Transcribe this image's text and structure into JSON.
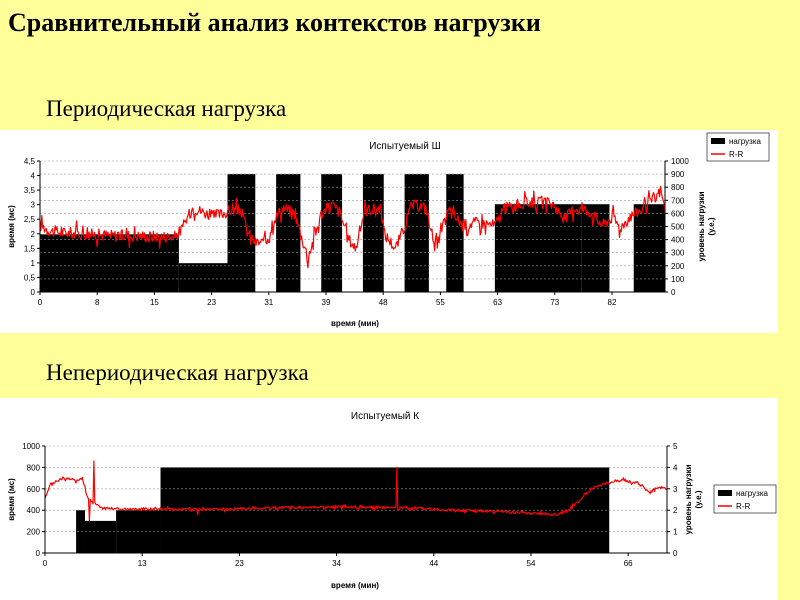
{
  "slide": {
    "title": "Сравнительный анализ контекстов нагрузки",
    "section_periodic": "Периодическая нагрузка",
    "section_nonperiodic": "Непериодическая нагрузка"
  },
  "colors": {
    "background": "#ffff99",
    "load": "#000000",
    "rr": "#ff0000",
    "grid": "#999999"
  },
  "chart_data": [
    {
      "type": "line",
      "title": "Испытуемый Ш",
      "xlabel": "время (мин)",
      "ylabel": "время (мс)",
      "y2label_line1": "уровень нагрузки",
      "y2label_line2": "(у.е.)",
      "x_ticks": [
        "0",
        "8",
        "15",
        "23",
        "31",
        "39",
        "48",
        "55",
        "63",
        "73",
        "82"
      ],
      "x_range": [
        0,
        90
      ],
      "ylim": [
        0,
        4.5
      ],
      "y_ticks": [
        "0",
        "0,5",
        "1",
        "1,5",
        "2",
        "2,5",
        "3",
        "3,5",
        "4",
        "4,5"
      ],
      "y2lim": [
        0,
        1000
      ],
      "y2_ticks": [
        "0",
        "100",
        "200",
        "300",
        "400",
        "500",
        "600",
        "700",
        "800",
        "900",
        "1000"
      ],
      "legend_position": "top-right",
      "legend": [
        "нагрузка",
        "R-R"
      ],
      "load_axis": "right",
      "load_steps": [
        [
          0,
          20,
          440
        ],
        [
          20,
          27,
          220
        ],
        [
          27,
          31,
          900
        ],
        [
          31,
          34,
          0
        ],
        [
          34,
          37.5,
          900
        ],
        [
          37.5,
          40.5,
          0
        ],
        [
          40.5,
          43.5,
          900
        ],
        [
          43.5,
          46.5,
          0
        ],
        [
          46.5,
          49.5,
          900
        ],
        [
          49.5,
          52.5,
          0
        ],
        [
          52.5,
          56,
          900
        ],
        [
          56,
          58.5,
          0
        ],
        [
          58.5,
          61,
          900
        ],
        [
          61,
          65.5,
          0
        ],
        [
          65.5,
          78,
          670
        ],
        [
          78,
          82,
          670
        ],
        [
          82,
          85.5,
          0
        ],
        [
          85.5,
          90,
          670
        ]
      ],
      "rr_axis": "left",
      "rr_keypoints": [
        [
          0,
          2.3
        ],
        [
          1.5,
          2.1
        ],
        [
          3,
          2.05
        ],
        [
          10,
          1.95
        ],
        [
          19.5,
          1.9
        ],
        [
          20.5,
          2.2
        ],
        [
          22,
          2.9
        ],
        [
          25,
          2.6
        ],
        [
          27.5,
          2.8
        ],
        [
          29,
          2.8
        ],
        [
          29.8,
          2.1
        ],
        [
          31,
          1.7
        ],
        [
          32.5,
          1.7
        ],
        [
          33.7,
          2.5
        ],
        [
          35,
          2.9
        ],
        [
          36.7,
          2.7
        ],
        [
          37.5,
          2.0
        ],
        [
          38.6,
          1.2
        ],
        [
          39.4,
          1.8
        ],
        [
          40.5,
          2.7
        ],
        [
          42,
          3.0
        ],
        [
          43.3,
          2.7
        ],
        [
          44.2,
          1.9
        ],
        [
          45.5,
          1.5
        ],
        [
          46.7,
          2.8
        ],
        [
          49,
          2.9
        ],
        [
          49.6,
          2.0
        ],
        [
          51.2,
          1.5
        ],
        [
          52.6,
          2.3
        ],
        [
          53.5,
          3.0
        ],
        [
          55.6,
          2.9
        ],
        [
          56.3,
          2.1
        ],
        [
          57.2,
          1.6
        ],
        [
          58.8,
          2.8
        ],
        [
          61,
          2.3
        ],
        [
          63,
          2.4
        ],
        [
          65.5,
          2.3
        ],
        [
          67,
          2.9
        ],
        [
          71,
          3.1
        ],
        [
          74,
          3.0
        ],
        [
          75.5,
          2.5
        ],
        [
          77,
          2.9
        ],
        [
          79,
          2.8
        ],
        [
          81,
          2.3
        ],
        [
          82.5,
          2.6
        ],
        [
          83.5,
          2.2
        ],
        [
          85,
          2.6
        ],
        [
          87,
          2.9
        ],
        [
          88.5,
          3.2
        ],
        [
          89.4,
          3.5
        ],
        [
          90,
          2.8
        ]
      ]
    },
    {
      "type": "line",
      "title": "Испытуемый К",
      "xlabel": "время (мин)",
      "ylabel": "время (мс)",
      "y2label_line1": "уровень нагрузки",
      "y2label_line2": "(у.е.)",
      "x_ticks": [
        "0",
        "13",
        "23",
        "34",
        "44",
        "54",
        "66"
      ],
      "x_range": [
        0,
        70
      ],
      "ylim": [
        0,
        1000
      ],
      "y_ticks": [
        "0",
        "200",
        "400",
        "600",
        "800",
        "1000"
      ],
      "y2lim": [
        0,
        5
      ],
      "y2_ticks": [
        "0",
        "1",
        "2",
        "3",
        "4",
        "5"
      ],
      "legend_position": "right",
      "legend": [
        "нагрузка",
        "R-R"
      ],
      "load_axis": "right",
      "load_steps": [
        [
          0,
          3.5,
          0
        ],
        [
          3.5,
          4.5,
          2
        ],
        [
          4.5,
          8,
          1.5
        ],
        [
          8,
          13,
          2
        ],
        [
          13,
          63.5,
          4
        ],
        [
          63.5,
          66.5,
          0
        ],
        [
          66.5,
          70,
          0
        ]
      ],
      "rr_axis": "left",
      "rr_keypoints": [
        [
          0,
          500
        ],
        [
          0.6,
          640
        ],
        [
          2,
          700
        ],
        [
          3.5,
          680
        ],
        [
          4.2,
          700
        ],
        [
          4.7,
          540
        ],
        [
          5.3,
          470
        ],
        [
          6.5,
          420
        ],
        [
          10,
          410
        ],
        [
          13,
          415
        ],
        [
          15,
          405
        ],
        [
          20,
          410
        ],
        [
          25,
          420
        ],
        [
          30,
          430
        ],
        [
          35,
          430
        ],
        [
          40,
          420
        ],
        [
          45,
          405
        ],
        [
          50,
          390
        ],
        [
          55,
          370
        ],
        [
          57.5,
          360
        ],
        [
          58.5,
          380
        ],
        [
          60,
          480
        ],
        [
          61.5,
          600
        ],
        [
          63,
          650
        ],
        [
          65,
          680
        ],
        [
          67,
          650
        ],
        [
          68,
          560
        ],
        [
          69,
          620
        ],
        [
          70,
          600
        ]
      ],
      "rr_spikes": [
        [
          5.5,
          860
        ],
        [
          5.0,
          300
        ],
        [
          17.2,
          360
        ],
        [
          39.6,
          800
        ],
        [
          39.8,
          400
        ]
      ]
    }
  ]
}
